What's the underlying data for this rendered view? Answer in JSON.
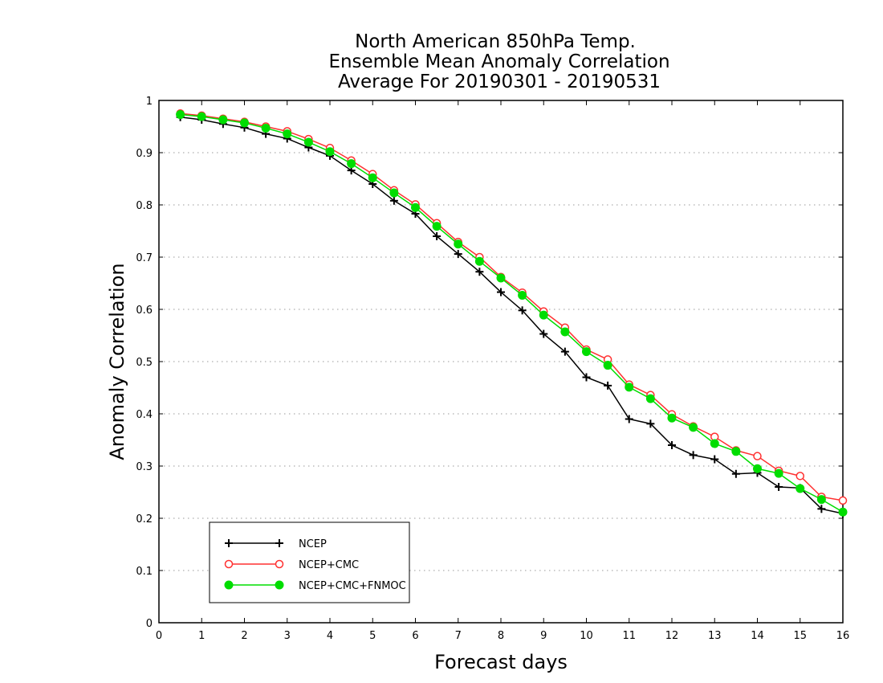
{
  "chart_data": {
    "type": "line",
    "title": [
      "North American 850hPa Temp.",
      "Ensemble Mean Anomaly Correlation",
      "Average For 20190301 - 20190531"
    ],
    "xlabel": "Forecast days",
    "ylabel": "Anomaly Correlation",
    "xlim": [
      0,
      16
    ],
    "ylim": [
      0,
      1
    ],
    "xticks": [
      "0",
      "1",
      "2",
      "3",
      "4",
      "5",
      "6",
      "7",
      "8",
      "9",
      "10",
      "11",
      "12",
      "13",
      "14",
      "15",
      "16"
    ],
    "yticks": [
      "0",
      "0.1",
      "0.2",
      "0.3",
      "0.4",
      "0.5",
      "0.6",
      "0.7",
      "0.8",
      "0.9",
      "1"
    ],
    "grid": "horizontal dotted",
    "legend_position": "bottom-left",
    "x": [
      0.5,
      1,
      1.5,
      2,
      2.5,
      3,
      3.5,
      4,
      4.5,
      5,
      5.5,
      6,
      6.5,
      7,
      7.5,
      8,
      8.5,
      9,
      9.5,
      10,
      10.5,
      11,
      11.5,
      12,
      12.5,
      13,
      13.5,
      14,
      14.5,
      15,
      15.5,
      16
    ],
    "series": [
      {
        "name": "NCEP",
        "color": "#000000",
        "marker": "plus",
        "values": [
          0.968,
          0.963,
          0.955,
          0.948,
          0.936,
          0.927,
          0.91,
          0.894,
          0.866,
          0.84,
          0.808,
          0.783,
          0.74,
          0.706,
          0.672,
          0.633,
          0.598,
          0.553,
          0.519,
          0.47,
          0.454,
          0.39,
          0.381,
          0.34,
          0.321,
          0.313,
          0.285,
          0.287,
          0.26,
          0.258,
          0.218,
          0.209
        ]
      },
      {
        "name": "NCEP+CMC",
        "color": "#ff3030",
        "marker": "open-circle",
        "values": [
          0.975,
          0.971,
          0.965,
          0.959,
          0.95,
          0.941,
          0.926,
          0.909,
          0.885,
          0.859,
          0.828,
          0.801,
          0.765,
          0.729,
          0.7,
          0.662,
          0.632,
          0.596,
          0.565,
          0.523,
          0.504,
          0.456,
          0.436,
          0.399,
          0.376,
          0.356,
          0.33,
          0.319,
          0.291,
          0.281,
          0.241,
          0.234
        ]
      },
      {
        "name": "NCEP+CMC+FNMOC",
        "color": "#00dd00",
        "marker": "filled-circle",
        "values": [
          0.973,
          0.969,
          0.963,
          0.957,
          0.947,
          0.936,
          0.92,
          0.902,
          0.879,
          0.852,
          0.823,
          0.795,
          0.759,
          0.725,
          0.692,
          0.66,
          0.627,
          0.589,
          0.557,
          0.519,
          0.493,
          0.451,
          0.429,
          0.392,
          0.374,
          0.343,
          0.328,
          0.295,
          0.286,
          0.257,
          0.236,
          0.212
        ]
      }
    ]
  }
}
